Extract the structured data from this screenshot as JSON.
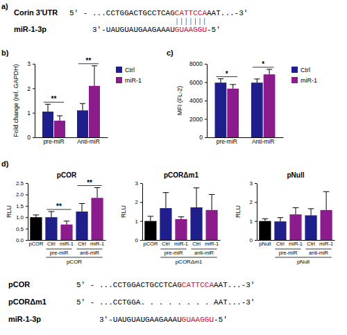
{
  "panel_labels": [
    "a)",
    "b)",
    "c)",
    "d)"
  ],
  "alignment_a": {
    "rows": [
      {
        "label": "Corin 3'UTR",
        "segments": [
          {
            "text": "5' - ...CCTGGACTGCCTCAG",
            "color": "#000000"
          },
          {
            "text": "CATTCCA",
            "color": "#e8001c"
          },
          {
            "text": "AAT...-3'",
            "color": "#000000"
          }
        ]
      },
      {
        "label": "miR-1-3p",
        "segments": [
          {
            "text": "3'-UAUGUAUGAAGAAAU",
            "color": "#000000"
          },
          {
            "text": "GUAAGGU",
            "color": "#e8001c"
          },
          {
            "text": "-5'",
            "color": "#000000"
          }
        ]
      }
    ]
  },
  "alignment_d": {
    "rows": [
      {
        "label": "pCOR",
        "segments": [
          {
            "text": "5' - ...CCTGGACTGCCTCAG",
            "color": "#000000"
          },
          {
            "text": "CATTCCA",
            "color": "#e8001c"
          },
          {
            "text": "AAT...-3'",
            "color": "#000000"
          }
        ]
      },
      {
        "label": "pCORΔm1",
        "segments": [
          {
            "text": "5' - ...CCTGGA. . . . . . . . AAT...-3'",
            "color": "#000000"
          }
        ]
      },
      {
        "label": "miR-1-3p",
        "segments": [
          {
            "text": "3'-UAUGUAUGAAGAAAU",
            "color": "#000000"
          },
          {
            "text": "GUAAGGU",
            "color": "#e8001c"
          },
          {
            "text": "-5'",
            "color": "#000000"
          }
        ]
      }
    ]
  },
  "chart_data": [
    {
      "type": "bar",
      "ylabel": "Fold change (rel. GAPDH)",
      "categories": [
        "pre-miR",
        "Anti-miR"
      ],
      "series": [
        {
          "name": "Ctrl",
          "color": "#1f1f8c",
          "values": [
            1.05,
            1.1
          ],
          "errors": [
            0.3,
            0.28
          ]
        },
        {
          "name": "miR-1",
          "color": "#8c1b8c",
          "values": [
            0.68,
            2.1
          ],
          "errors": [
            0.2,
            0.82
          ]
        }
      ],
      "ylim": [
        0,
        3
      ],
      "yticks": [
        0,
        1,
        2,
        3
      ],
      "legend": "right",
      "annotations": [
        {
          "text": "**",
          "category": "pre-miR"
        },
        {
          "text": "**",
          "category": "Anti-miR"
        }
      ]
    },
    {
      "type": "bar",
      "ylabel": "MFI (FL-2)",
      "categories": [
        "pre-miR",
        "Anti-miR"
      ],
      "series": [
        {
          "name": "Ctrl",
          "color": "#1f1f8c",
          "values": [
            5950,
            5950
          ],
          "errors": [
            420,
            400
          ]
        },
        {
          "name": "miR-1",
          "color": "#8c1b8c",
          "values": [
            5300,
            6850
          ],
          "errors": [
            450,
            550
          ]
        }
      ],
      "ylim": [
        0,
        8000
      ],
      "yticks": [
        0,
        2000,
        4000,
        6000,
        8000
      ],
      "legend": "right",
      "annotations": [
        {
          "text": "*",
          "category": "pre-miR"
        },
        {
          "text": "*",
          "category": "Anti-miR"
        }
      ]
    },
    {
      "type": "bar",
      "title": "pCOR",
      "ylabel": "RLU",
      "xlabel": "pCOR",
      "categories": [
        "pCOR",
        "Ctrl",
        "miR-1",
        "Ctrl",
        "miR-1"
      ],
      "category_groups": [
        null,
        "pre-miR",
        "pre-miR",
        "anti-miR",
        "anti-miR"
      ],
      "values": [
        1.0,
        1.0,
        0.68,
        1.25,
        1.85
      ],
      "errors": [
        0.1,
        0.25,
        0.15,
        0.35,
        0.45
      ],
      "colors": [
        "#000000",
        "#1f1f8c",
        "#8c1b8c",
        "#1f1f8c",
        "#8c1b8c"
      ],
      "ylim": [
        0,
        2.5
      ],
      "yticks": [
        {
          "value": 0,
          "label": "0.0"
        },
        {
          "value": 0.5,
          "label": "0.5"
        },
        {
          "value": 1,
          "label": "1.0"
        },
        {
          "value": 1.5,
          "label": "1.5"
        },
        {
          "value": 2,
          "label": "2.0"
        },
        {
          "value": 2.5,
          "label": "2.5"
        }
      ],
      "annotations": [
        {
          "text": "**",
          "group": "pre-miR"
        },
        {
          "text": "**",
          "group": "anti-miR"
        }
      ]
    },
    {
      "type": "bar",
      "title": "pCORΔm1",
      "ylabel": "RLU",
      "xlabel": "pCORΔm1",
      "categories": [
        "pCOR",
        "Ctrl",
        "miR-1",
        "Ctrl",
        "miR-1"
      ],
      "category_groups": [
        null,
        "pre-miR",
        "pre-miR",
        "anti-miR",
        "anti-miR"
      ],
      "values": [
        1.0,
        1.68,
        1.1,
        1.72,
        1.58
      ],
      "errors": [
        0.25,
        0.82,
        0.12,
        1.03,
        0.82
      ],
      "colors": [
        "#000000",
        "#1f1f8c",
        "#8c1b8c",
        "#1f1f8c",
        "#8c1b8c"
      ],
      "ylim": [
        0,
        3
      ],
      "yticks": [
        0,
        1,
        2,
        3
      ]
    },
    {
      "type": "bar",
      "title": "pNull",
      "ylabel": "RLU",
      "xlabel": "pNull",
      "categories": [
        "pNull",
        "Ctrl",
        "miR-1",
        "Ctrl",
        "miR-1"
      ],
      "category_groups": [
        null,
        "pre-miR",
        "pre-miR",
        "anti-miR",
        "anti-miR"
      ],
      "values": [
        1.0,
        0.98,
        1.35,
        1.3,
        1.58
      ],
      "errors": [
        0.12,
        0.2,
        0.35,
        0.35,
        0.97
      ],
      "colors": [
        "#000000",
        "#1f1f8c",
        "#8c1b8c",
        "#1f1f8c",
        "#8c1b8c"
      ],
      "ylim": [
        0,
        3
      ],
      "yticks": [
        0,
        1,
        2,
        3
      ]
    }
  ]
}
